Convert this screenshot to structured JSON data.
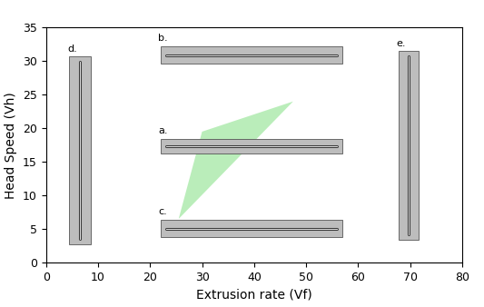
{
  "chart_data": {
    "type": "samples",
    "x_label": "Extrusion rate (Vf)",
    "y_label": "Head Speed (Vh)",
    "xlim": [
      0,
      80
    ],
    "ylim": [
      0,
      35
    ],
    "xticks": [
      0,
      10,
      20,
      30,
      40,
      50,
      60,
      70,
      80
    ],
    "yticks": [
      0,
      5,
      10,
      15,
      20,
      25,
      30,
      35
    ],
    "grid": false,
    "region": {
      "x": [
        25.5,
        30,
        47.5
      ],
      "y": [
        6.5,
        19.5,
        24
      ],
      "color": "#b3ecb3"
    },
    "samples": [
      {
        "label": "a.",
        "x": [
          22,
          57
        ],
        "y": [
          16.2,
          18.4
        ]
      },
      {
        "label": "b.",
        "x": [
          22,
          57
        ],
        "y": [
          29.6,
          32.2
        ]
      },
      {
        "label": "c.",
        "x": [
          22,
          57
        ],
        "y": [
          3.8,
          6.3
        ]
      },
      {
        "label": "d.",
        "x": [
          4.5,
          8.7
        ],
        "y": [
          2.7,
          30.7
        ]
      },
      {
        "label": "e.",
        "x": [
          67.7,
          71.7
        ],
        "y": [
          3.4,
          31.6
        ]
      }
    ],
    "color": "#bdbdbd"
  }
}
